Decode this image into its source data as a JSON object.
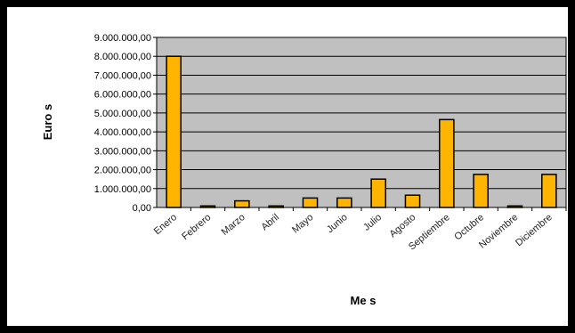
{
  "chart_data": {
    "type": "bar",
    "xlabel": "Me s",
    "ylabel": "Euro s",
    "ylim": [
      0,
      9000000
    ],
    "yticks": [
      0,
      1000000,
      2000000,
      3000000,
      4000000,
      5000000,
      6000000,
      7000000,
      8000000,
      9000000
    ],
    "ytick_labels": [
      "0,00",
      "1.000.000,00",
      "2.000.000,00",
      "3.000.000,00",
      "4.000.000,00",
      "5.000.000,00",
      "6.000.000,00",
      "7.000.000,00",
      "8.000.000,00",
      "9.000.000,00"
    ],
    "categories": [
      "Enero",
      "Febrero",
      "Marzo",
      "Abril",
      "Mayo",
      "Junio",
      "Julio",
      "Agosto",
      "Septiembre",
      "Octubre",
      "Noviembre",
      "Diciembre"
    ],
    "values": [
      8000000,
      80000,
      350000,
      80000,
      500000,
      500000,
      1500000,
      650000,
      4650000,
      1750000,
      80000,
      1750000
    ],
    "grid": true,
    "colors": {
      "bar": "#FFB400",
      "plot_bg": "#C0C0C0",
      "frame": "#000000"
    }
  }
}
